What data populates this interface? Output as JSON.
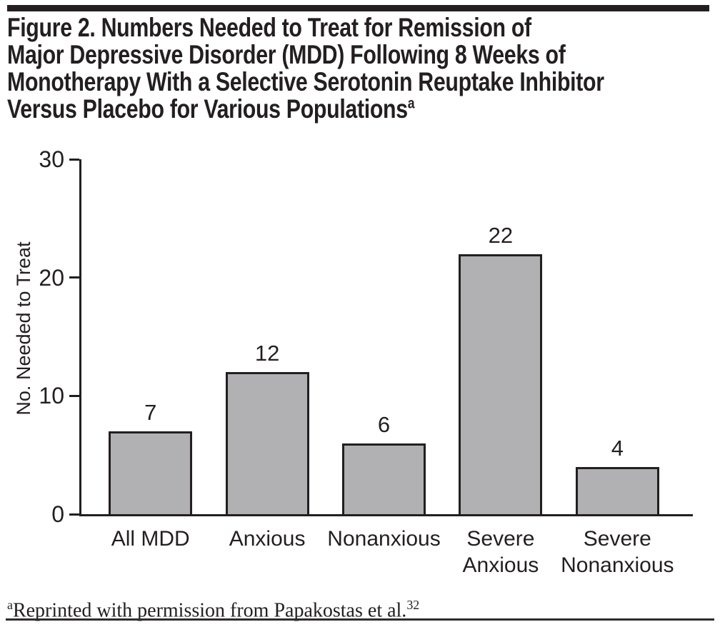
{
  "figure": {
    "title_lines": [
      "Figure 2. Numbers Needed to Treat for Remission of",
      "Major Depressive Disorder (MDD) Following 8 Weeks of",
      "Monotherapy With a Selective Serotonin Reuptake Inhibitor",
      "Versus Placebo for Various Populations"
    ],
    "title_superscript": "a",
    "footnote": {
      "prefix_superscript": "a",
      "text": "Reprinted with permission from Papakostas et al.",
      "suffix_superscript": "32"
    }
  },
  "chart_data": {
    "type": "bar",
    "title": "",
    "categories": [
      "All MDD",
      "Anxious",
      "Nonanxious",
      "Severe Anxious",
      "Severe Nonanxious"
    ],
    "categories_wrapped": [
      [
        "All MDD"
      ],
      [
        "Anxious"
      ],
      [
        "Nonanxious"
      ],
      [
        "Severe",
        "Anxious"
      ],
      [
        "Severe",
        "Nonanxious"
      ]
    ],
    "values": [
      7,
      12,
      6,
      22,
      4
    ],
    "bar_value_labels": [
      "7",
      "12",
      "6",
      "22",
      "4"
    ],
    "xlabel": "",
    "ylabel": "No. Needed to Treat",
    "ylim": [
      0,
      30
    ],
    "yticks": [
      0,
      10,
      20,
      30
    ],
    "grid": false,
    "legend_position": "none",
    "bar_fill_color": "#b1b1b3",
    "bar_border_color": "#231f20",
    "axis_color": "#231f20",
    "text_color": "#231f20"
  }
}
